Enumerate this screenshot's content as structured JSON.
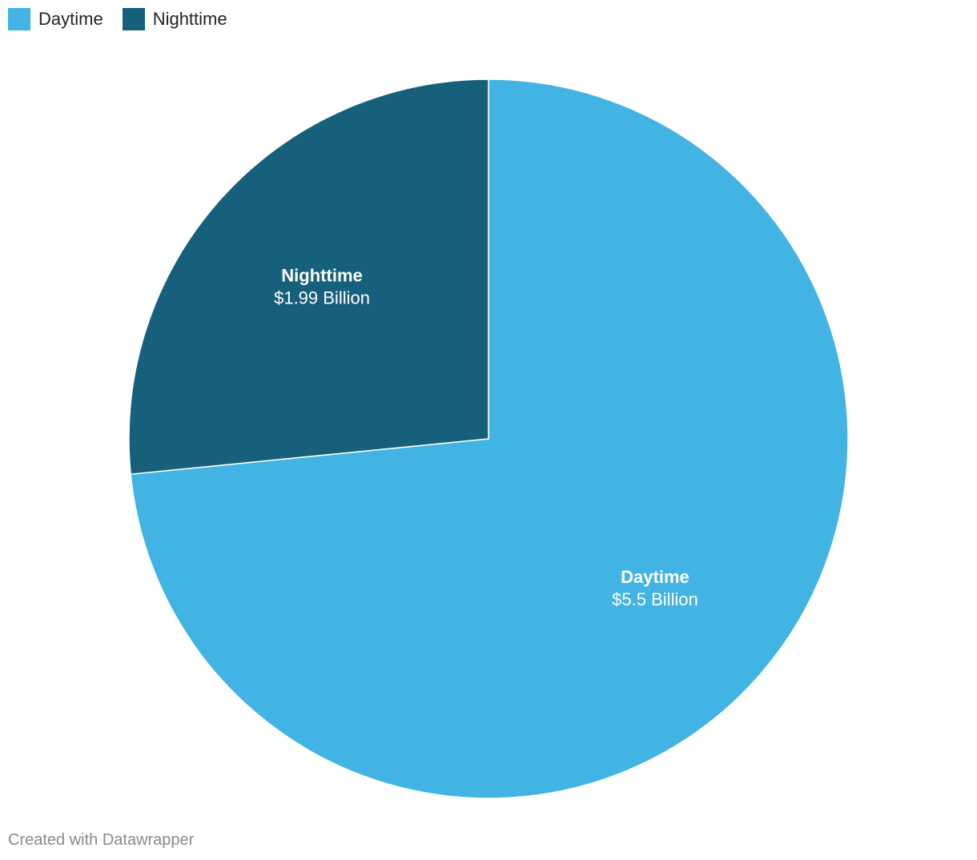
{
  "chart_data": {
    "type": "pie",
    "categories": [
      "Daytime",
      "Nighttime"
    ],
    "values": [
      5.5,
      1.99
    ],
    "value_labels": [
      "$5.5 Billion",
      "$1.99 Billion"
    ],
    "colors": [
      "#41b4e3",
      "#17607c"
    ],
    "legend": "top-left",
    "credit": "Created with Datawrapper"
  }
}
